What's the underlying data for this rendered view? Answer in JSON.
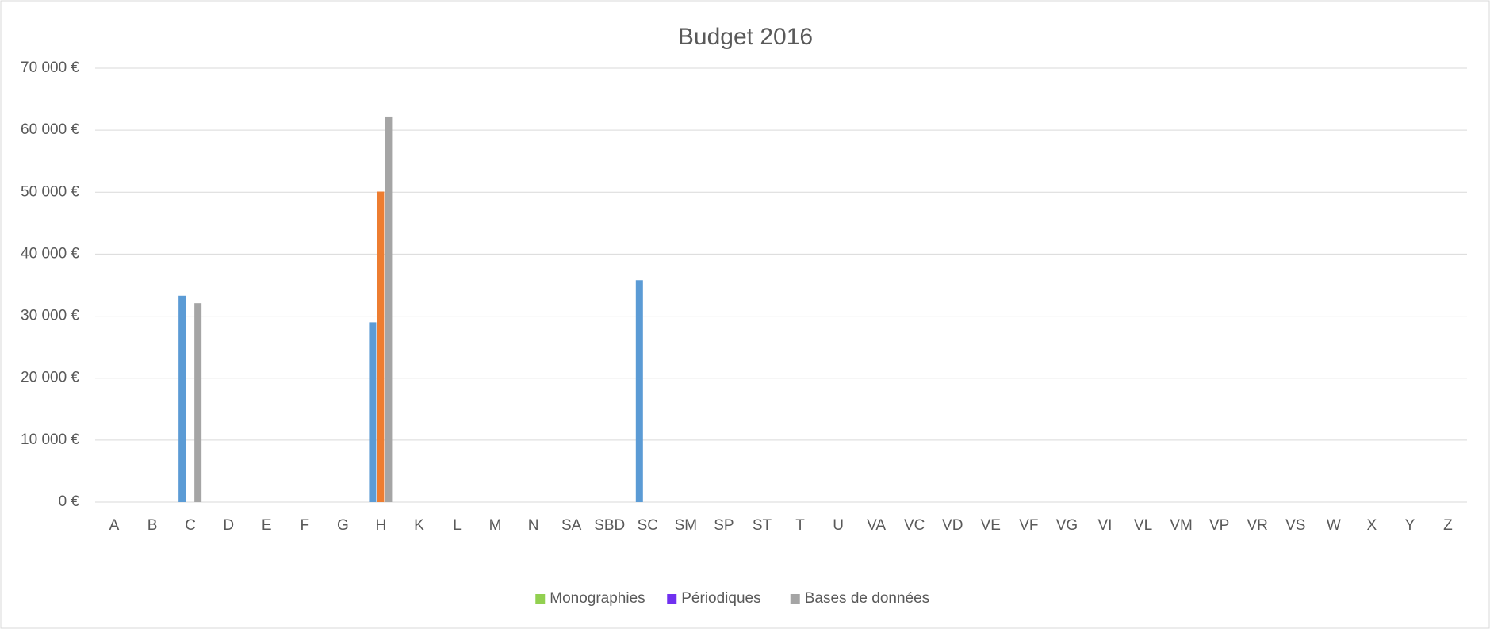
{
  "chart_data": {
    "type": "bar",
    "title": "Budget 2016",
    "categories": [
      "A",
      "B",
      "C",
      "D",
      "E",
      "F",
      "G",
      "H",
      "K",
      "L",
      "M",
      "N",
      "SA",
      "SBD",
      "SC",
      "SM",
      "SP",
      "ST",
      "T",
      "U",
      "VA",
      "VC",
      "VD",
      "VE",
      "VF",
      "VG",
      "VI",
      "VL",
      "VM",
      "VP",
      "VR",
      "VS",
      "W",
      "X",
      "Y",
      "Z"
    ],
    "series": [
      {
        "name": "Monographies",
        "color": "#5b9bd5",
        "legend_color": "#92d050",
        "values": [
          0,
          0,
          33300,
          0,
          0,
          0,
          0,
          29000,
          0,
          0,
          0,
          0,
          0,
          0,
          35800,
          0,
          0,
          0,
          0,
          0,
          0,
          0,
          0,
          0,
          0,
          0,
          0,
          0,
          0,
          0,
          0,
          0,
          0,
          0,
          0,
          0
        ]
      },
      {
        "name": "Périodiques",
        "color": "#ed7d31",
        "legend_color": "#7030f0",
        "values": [
          0,
          0,
          0,
          0,
          0,
          0,
          0,
          50100,
          0,
          0,
          0,
          0,
          0,
          0,
          0,
          0,
          0,
          0,
          0,
          0,
          0,
          0,
          0,
          0,
          0,
          0,
          0,
          0,
          0,
          0,
          0,
          0,
          0,
          0,
          0,
          0
        ]
      },
      {
        "name": "Bases de données",
        "color": "#a5a5a5",
        "legend_color": "#a5a5a5",
        "values": [
          0,
          0,
          32100,
          0,
          0,
          0,
          0,
          62200,
          0,
          0,
          0,
          0,
          0,
          0,
          0,
          0,
          0,
          0,
          0,
          0,
          0,
          0,
          0,
          0,
          0,
          0,
          0,
          0,
          0,
          0,
          0,
          0,
          0,
          0,
          0,
          0
        ]
      }
    ],
    "ylim": [
      0,
      70000
    ],
    "yticks": [
      {
        "value": 0,
        "label": "0 €"
      },
      {
        "value": 10000,
        "label": "10 000 €"
      },
      {
        "value": 20000,
        "label": "20 000 €"
      },
      {
        "value": 30000,
        "label": "30 000 €"
      },
      {
        "value": 40000,
        "label": "40 000 €"
      },
      {
        "value": 50000,
        "label": "50 000 €"
      },
      {
        "value": 60000,
        "label": "60 000 €"
      },
      {
        "value": 70000,
        "label": "70 000 €"
      }
    ],
    "grid": true,
    "legend": "bottom"
  }
}
